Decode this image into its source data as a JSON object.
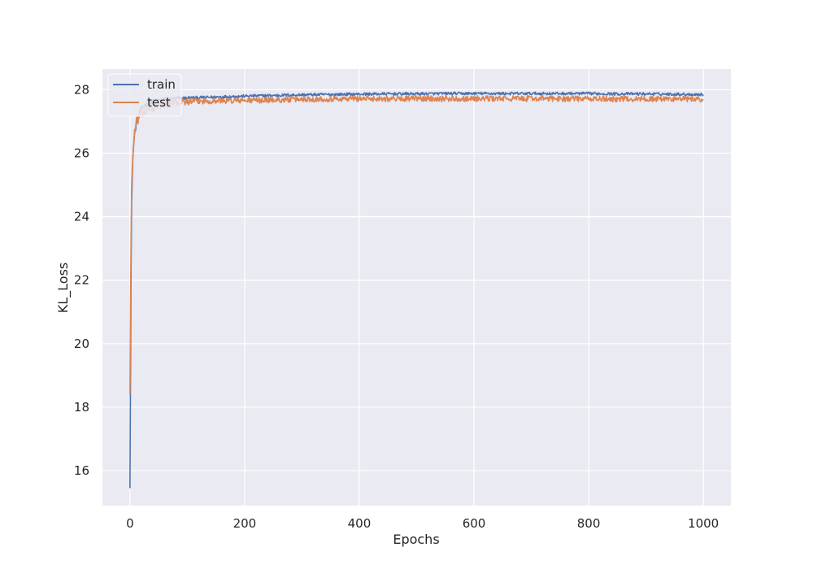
{
  "chart_data": {
    "type": "line",
    "title": "",
    "xlabel": "Epochs",
    "ylabel": "KL_Loss",
    "xlim": [
      -48,
      1048
    ],
    "ylim": [
      14.9,
      28.65
    ],
    "xticks": [
      0,
      200,
      400,
      600,
      800,
      1000
    ],
    "yticks": [
      16,
      18,
      20,
      22,
      24,
      26,
      28
    ],
    "grid": true,
    "background": "#eaeaf2",
    "grid_color": "#ffffff",
    "legend_placement": "upper-left",
    "series": [
      {
        "name": "train",
        "color": "#4c72b0",
        "x": [
          0,
          1,
          2,
          3,
          5,
          8,
          12,
          16,
          20,
          25,
          30,
          40,
          50,
          60,
          70,
          80,
          90,
          100,
          120,
          150,
          200,
          250,
          300,
          350,
          400,
          450,
          500,
          550,
          600,
          650,
          700,
          750,
          800,
          850,
          900,
          950,
          1000
        ],
        "y": [
          15.45,
          19.0,
          22.5,
          24.5,
          25.9,
          26.6,
          27.0,
          27.25,
          27.4,
          27.5,
          27.55,
          27.62,
          27.66,
          27.69,
          27.71,
          27.72,
          27.73,
          27.74,
          27.75,
          27.77,
          27.8,
          27.82,
          27.84,
          27.85,
          27.86,
          27.87,
          27.87,
          27.88,
          27.88,
          27.88,
          27.88,
          27.88,
          27.88,
          27.87,
          27.87,
          27.86,
          27.85
        ],
        "noise": 0.045
      },
      {
        "name": "test",
        "color": "#dd8452",
        "x": [
          0,
          1,
          2,
          3,
          5,
          8,
          12,
          16,
          20,
          25,
          30,
          40,
          50,
          60,
          70,
          80,
          90,
          100,
          120,
          150,
          200,
          250,
          300,
          350,
          400,
          450,
          500,
          550,
          600,
          650,
          700,
          750,
          800,
          850,
          900,
          950,
          1000
        ],
        "y": [
          18.4,
          21.2,
          23.5,
          25.0,
          26.0,
          26.6,
          27.0,
          27.15,
          27.25,
          27.3,
          27.35,
          27.45,
          27.5,
          27.55,
          27.58,
          27.6,
          27.62,
          27.63,
          27.64,
          27.65,
          27.66,
          27.68,
          27.7,
          27.71,
          27.72,
          27.72,
          27.72,
          27.72,
          27.72,
          27.72,
          27.72,
          27.72,
          27.71,
          27.71,
          27.71,
          27.71,
          27.7
        ],
        "noise": 0.09
      }
    ]
  }
}
